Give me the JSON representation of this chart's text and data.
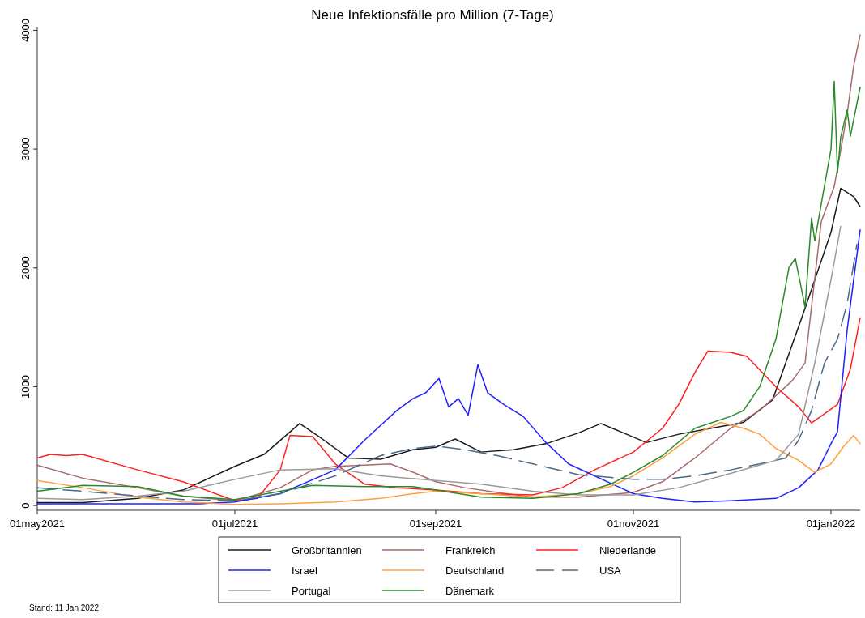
{
  "chart_data": {
    "type": "line",
    "title": "Neue Infektionsfälle pro Million (7-Tage)",
    "xlim": [
      "2021-05-01",
      "2022-01-10"
    ],
    "xticks": [
      {
        "value": "2021-05-01",
        "label": "01may2021"
      },
      {
        "value": "2021-07-01",
        "label": "01jul2021"
      },
      {
        "value": "2021-09-01",
        "label": "01sep2021"
      },
      {
        "value": "2021-11-01",
        "label": "01nov2021"
      },
      {
        "value": "2022-01-01",
        "label": "01jan2022"
      }
    ],
    "ylim": [
      -40,
      4030
    ],
    "yticks": [
      0,
      1000,
      2000,
      3000,
      4000
    ],
    "grid": false,
    "legend": "bottom",
    "line_style": "solid",
    "marker": "none",
    "annotations": [
      "Stand: 11 Jan 2022"
    ],
    "series": [
      {
        "name": "Großbritannien",
        "color": "#1a1a1a",
        "x": [
          "2021-05-01",
          "2021-05-15",
          "2021-06-01",
          "2021-06-15",
          "2021-07-01",
          "2021-07-10",
          "2021-07-21",
          "2021-07-28",
          "2021-08-05",
          "2021-08-15",
          "2021-08-25",
          "2021-09-01",
          "2021-09-07",
          "2021-09-15",
          "2021-09-25",
          "2021-10-05",
          "2021-10-15",
          "2021-10-22",
          "2021-11-05",
          "2021-11-15",
          "2021-11-25",
          "2021-12-05",
          "2021-12-14",
          "2021-12-24",
          "2022-01-01",
          "2022-01-04",
          "2022-01-08",
          "2022-01-10"
        ],
        "values": [
          25,
          25,
          60,
          130,
          330,
          430,
          690,
          560,
          400,
          390,
          470,
          490,
          560,
          450,
          470,
          520,
          610,
          690,
          530,
          600,
          650,
          700,
          890,
          1660,
          2300,
          2670,
          2600,
          2515
        ]
      },
      {
        "name": "Frankreich",
        "color": "#a86a6a",
        "x": [
          "2021-05-01",
          "2021-05-15",
          "2021-06-01",
          "2021-06-15",
          "2021-07-01",
          "2021-07-15",
          "2021-07-25",
          "2021-08-01",
          "2021-08-10",
          "2021-08-18",
          "2021-08-25",
          "2021-09-01",
          "2021-09-10",
          "2021-09-20",
          "2021-10-01",
          "2021-10-15",
          "2021-11-01",
          "2021-11-10",
          "2021-11-20",
          "2021-12-01",
          "2021-12-10",
          "2021-12-20",
          "2021-12-24",
          "2021-12-29",
          "2022-01-02",
          "2022-01-06",
          "2022-01-08",
          "2022-01-10"
        ],
        "values": [
          340,
          230,
          150,
          80,
          40,
          150,
          300,
          330,
          340,
          350,
          280,
          200,
          150,
          110,
          70,
          70,
          110,
          200,
          400,
          650,
          800,
          1050,
          1200,
          2390,
          2685,
          3300,
          3700,
          3960
        ]
      },
      {
        "name": "Niederlande",
        "color": "#ff2020",
        "x": [
          "2021-05-01",
          "2021-05-05",
          "2021-05-10",
          "2021-05-15",
          "2021-06-01",
          "2021-06-15",
          "2021-07-01",
          "2021-07-08",
          "2021-07-15",
          "2021-07-18",
          "2021-07-25",
          "2021-08-01",
          "2021-08-10",
          "2021-08-20",
          "2021-09-01",
          "2021-09-15",
          "2021-10-01",
          "2021-10-10",
          "2021-10-20",
          "2021-11-01",
          "2021-11-10",
          "2021-11-15",
          "2021-11-20",
          "2021-11-24",
          "2021-12-01",
          "2021-12-06",
          "2021-12-15",
          "2021-12-22",
          "2021-12-26",
          "2022-01-03",
          "2022-01-07",
          "2022-01-10"
        ],
        "values": [
          400,
          430,
          420,
          430,
          300,
          200,
          40,
          60,
          300,
          590,
          580,
          350,
          180,
          150,
          130,
          100,
          90,
          150,
          300,
          450,
          650,
          850,
          1120,
          1300,
          1290,
          1255,
          1000,
          830,
          695,
          850,
          1150,
          1580
        ]
      },
      {
        "name": "Israel",
        "color": "#2020ff",
        "x": [
          "2021-05-01",
          "2021-06-20",
          "2021-07-01",
          "2021-07-15",
          "2021-08-01",
          "2021-08-10",
          "2021-08-20",
          "2021-08-25",
          "2021-08-29",
          "2021-09-02",
          "2021-09-05",
          "2021-09-08",
          "2021-09-11",
          "2021-09-14",
          "2021-09-17",
          "2021-09-22",
          "2021-09-28",
          "2021-10-05",
          "2021-10-12",
          "2021-10-20",
          "2021-11-01",
          "2021-11-10",
          "2021-11-20",
          "2021-12-01",
          "2021-12-15",
          "2021-12-22",
          "2021-12-28",
          "2022-01-01",
          "2022-01-03",
          "2022-01-06",
          "2022-01-10"
        ],
        "values": [
          15,
          15,
          30,
          100,
          300,
          550,
          800,
          900,
          950,
          1070,
          830,
          900,
          760,
          1185,
          950,
          850,
          750,
          530,
          350,
          250,
          100,
          60,
          30,
          40,
          60,
          150,
          300,
          520,
          620,
          1480,
          2320
        ]
      },
      {
        "name": "Deutschland",
        "color": "#ffa040",
        "x": [
          "2021-05-01",
          "2021-05-15",
          "2021-06-01",
          "2021-06-15",
          "2021-07-01",
          "2021-07-15",
          "2021-08-01",
          "2021-08-15",
          "2021-08-25",
          "2021-09-01",
          "2021-09-15",
          "2021-10-01",
          "2021-10-15",
          "2021-10-25",
          "2021-11-01",
          "2021-11-10",
          "2021-11-20",
          "2021-11-28",
          "2021-12-05",
          "2021-12-10",
          "2021-12-15",
          "2021-12-22",
          "2021-12-27",
          "2022-01-01",
          "2022-01-05",
          "2022-01-08",
          "2022-01-10"
        ],
        "values": [
          210,
          150,
          70,
          30,
          10,
          15,
          30,
          60,
          100,
          120,
          100,
          70,
          100,
          160,
          250,
          400,
          600,
          700,
          650,
          600,
          480,
          380,
          280,
          350,
          500,
          590,
          520
        ]
      },
      {
        "name": "USA",
        "color": "#4a6a88",
        "line_style": "dashed",
        "x": [
          "2021-05-01",
          "2021-05-15",
          "2021-06-01",
          "2021-06-15",
          "2021-07-01",
          "2021-07-15",
          "2021-08-01",
          "2021-08-15",
          "2021-08-25",
          "2021-09-01",
          "2021-09-10",
          "2021-09-20",
          "2021-10-01",
          "2021-10-15",
          "2021-11-01",
          "2021-11-10",
          "2021-11-20",
          "2021-12-01",
          "2021-12-10",
          "2021-12-18",
          "2021-12-22",
          "2021-12-26",
          "2021-12-30",
          "2022-01-03",
          "2022-01-06",
          "2022-01-09"
        ],
        "values": [
          150,
          120,
          80,
          50,
          40,
          100,
          250,
          420,
          480,
          500,
          470,
          420,
          350,
          260,
          220,
          220,
          250,
          300,
          350,
          400,
          550,
          800,
          1200,
          1400,
          1700,
          2200
        ]
      },
      {
        "name": "Portugal",
        "color": "#9a9a9a",
        "x": [
          "2021-05-01",
          "2021-05-15",
          "2021-06-01",
          "2021-06-15",
          "2021-07-01",
          "2021-07-15",
          "2021-08-01",
          "2021-08-15",
          "2021-09-01",
          "2021-09-15",
          "2021-10-01",
          "2021-10-15",
          "2021-11-01",
          "2021-11-15",
          "2021-12-01",
          "2021-12-15",
          "2021-12-22",
          "2021-12-27",
          "2022-01-01",
          "2022-01-04"
        ],
        "values": [
          60,
          50,
          80,
          120,
          220,
          300,
          310,
          250,
          210,
          180,
          120,
          90,
          90,
          150,
          270,
          380,
          600,
          1200,
          1900,
          2350
        ]
      },
      {
        "name": "Dänemark",
        "color": "#2a8a2a",
        "x": [
          "2021-05-01",
          "2021-05-15",
          "2021-06-01",
          "2021-06-15",
          "2021-07-01",
          "2021-07-15",
          "2021-07-25",
          "2021-08-10",
          "2021-08-25",
          "2021-09-01",
          "2021-09-15",
          "2021-10-01",
          "2021-10-15",
          "2021-10-25",
          "2021-11-01",
          "2021-11-10",
          "2021-11-20",
          "2021-12-01",
          "2021-12-05",
          "2021-12-10",
          "2021-12-15",
          "2021-12-19",
          "2021-12-21",
          "2021-12-24",
          "2021-12-26",
          "2021-12-27",
          "2022-01-01",
          "2022-01-02",
          "2022-01-03",
          "2022-01-04",
          "2022-01-06",
          "2022-01-07",
          "2022-01-10"
        ],
        "values": [
          120,
          170,
          160,
          80,
          50,
          120,
          170,
          160,
          160,
          130,
          70,
          60,
          100,
          180,
          280,
          420,
          650,
          750,
          800,
          1000,
          1400,
          2000,
          2080,
          1670,
          2420,
          2230,
          3000,
          3570,
          2800,
          3100,
          3330,
          3110,
          3520
        ]
      }
    ]
  }
}
